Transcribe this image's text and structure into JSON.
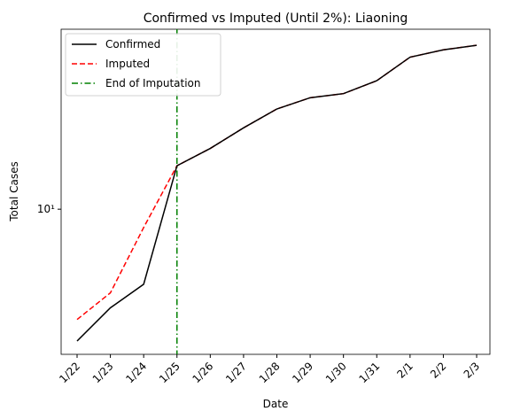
{
  "chart_data": {
    "type": "line",
    "title": "Confirmed vs Imputed (Until 2%): Liaoning",
    "xlabel": "Date",
    "ylabel": "Total Cases",
    "categories": [
      "1/22",
      "1/23",
      "1/24",
      "1/25",
      "1/26",
      "1/27",
      "1/28",
      "1/29",
      "1/30",
      "1/31",
      "2/1",
      "2/2",
      "2/3"
    ],
    "series": [
      {
        "name": "Confirmed",
        "color": "#000000",
        "dash": "solid",
        "values": [
          2,
          3,
          4,
          17,
          21,
          27,
          34,
          39,
          41,
          48,
          64,
          70,
          74
        ]
      },
      {
        "name": "Imputed",
        "color": "#ff0000",
        "dash": "dashed",
        "values": [
          2.6,
          3.6,
          8,
          17,
          21,
          27,
          34,
          39,
          41,
          48,
          64,
          70,
          74
        ]
      }
    ],
    "vline": {
      "name": "End of Imputation",
      "color": "#008000",
      "at": "1/25"
    },
    "ylim": [
      1.7,
      90
    ],
    "log_y": true,
    "yticks": [
      {
        "value": 10,
        "label": "10¹"
      }
    ],
    "legend": "upper left"
  }
}
